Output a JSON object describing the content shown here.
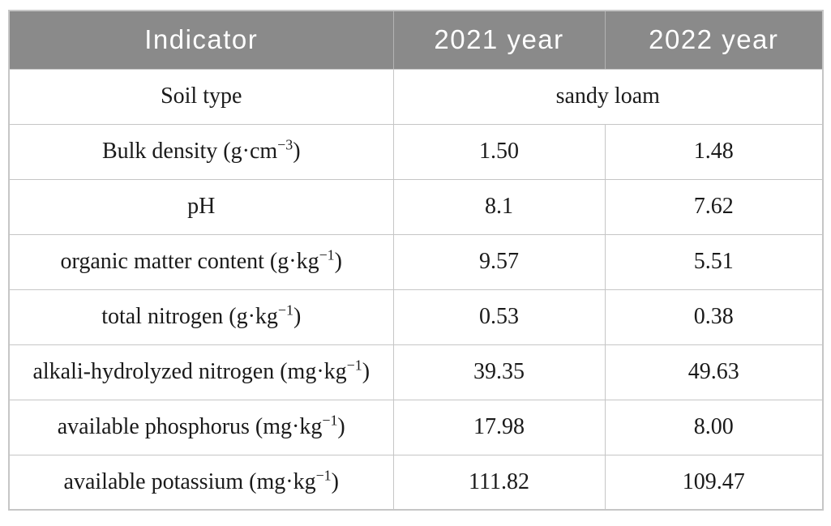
{
  "page": {
    "background": "#ffffff"
  },
  "table": {
    "columns": {
      "indicator": "Indicator",
      "year_2021": "2021 year",
      "year_2022": "2022 year"
    },
    "soil_type": {
      "label": "Soil type",
      "value": "sandy loam"
    },
    "rows": [
      {
        "label": "Bulk density (g·cm^{−3})",
        "y2021": "1.50",
        "y2022": "1.48"
      },
      {
        "label": "pH",
        "y2021": "8.1",
        "y2022": "7.62"
      },
      {
        "label": "organic matter content (g·kg^{−1})",
        "y2021": "9.57",
        "y2022": "5.51"
      },
      {
        "label": "total nitrogen (g·kg^{−1})",
        "y2021": "0.53",
        "y2022": "0.38"
      },
      {
        "label": "alkali-hydrolyzed nitrogen (mg·kg^{−1})",
        "y2021": "39.35",
        "y2022": "49.63"
      },
      {
        "label": "available phosphorus (mg·kg^{−1})",
        "y2021": "17.98",
        "y2022": "8.00"
      },
      {
        "label": "available potassium (mg·kg^{−1})",
        "y2021": "111.82",
        "y2022": "109.47"
      }
    ],
    "colors": {
      "header_bg": "#8a8a8a",
      "header_text": "#ffffff",
      "grid": "#c6c6c6",
      "body_text": "#1a1a1a"
    }
  }
}
